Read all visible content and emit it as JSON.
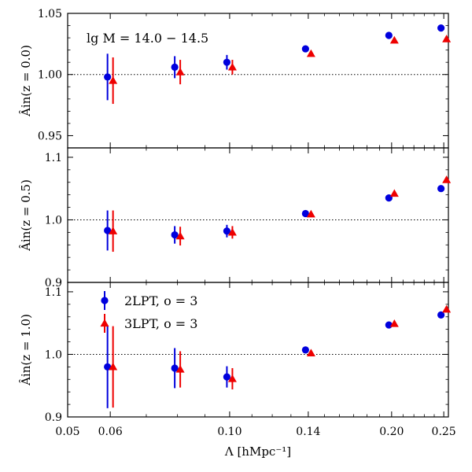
{
  "chart_data": {
    "type": "scatter",
    "x_scale": "log",
    "grid": false,
    "x_axis": {
      "label": "Λ [hMpc⁻¹]",
      "ticks": [
        0.05,
        0.06,
        0.1,
        0.14,
        0.2,
        0.25
      ],
      "tick_labels": [
        "0.05",
        "0.06",
        "0.10",
        "0.14",
        "0.20",
        "0.25"
      ]
    },
    "legend": {
      "placement": "upper-left of bottom panel",
      "entries": [
        {
          "label": "2LPT, o = 3",
          "color": "#0000dd",
          "marker": "circle"
        },
        {
          "label": "3LPT, o = 3",
          "color": "#ee0000",
          "marker": "triangle"
        }
      ]
    },
    "annotation": "lg M = 14.0 − 14.5",
    "panels": [
      {
        "ylabel": "Âin(z = 0.0)",
        "ylim": [
          0.94,
          1.05
        ],
        "yticks": [
          0.95,
          1.0,
          1.05
        ],
        "ytick_labels": [
          "0.95",
          "1.00",
          "1.05"
        ],
        "reference_line": 1.0,
        "series": [
          {
            "name": "2LPT, o = 3",
            "x": [
              0.06,
              0.08,
              0.1,
              0.14,
              0.2,
              0.25
            ],
            "y": [
              0.998,
              1.006,
              1.01,
              1.021,
              1.032,
              1.038
            ],
            "err": [
              0.019,
              0.009,
              0.006,
              0.002,
              0.002,
              0.002
            ]
          },
          {
            "name": "3LPT, o = 3",
            "x": [
              0.06,
              0.08,
              0.1,
              0.14,
              0.2,
              0.25
            ],
            "y": [
              0.995,
              1.002,
              1.006,
              1.017,
              1.028,
              1.029
            ],
            "err": [
              0.019,
              0.01,
              0.006,
              0.002,
              0.002,
              0.002
            ]
          }
        ]
      },
      {
        "ylabel": "Âin(z = 0.5)",
        "ylim": [
          0.9,
          1.115
        ],
        "yticks": [
          0.9,
          1.0,
          1.1
        ],
        "ytick_labels": [
          "0.9",
          "1.0",
          "1.1"
        ],
        "reference_line": 1.0,
        "series": [
          {
            "name": "2LPT, o = 3",
            "x": [
              0.06,
              0.08,
              0.1,
              0.14,
              0.2,
              0.25
            ],
            "y": [
              0.983,
              0.976,
              0.982,
              1.01,
              1.035,
              1.05
            ],
            "err": [
              0.032,
              0.014,
              0.01,
              0.003,
              0.003,
              0.002
            ]
          },
          {
            "name": "3LPT, o = 3",
            "x": [
              0.06,
              0.08,
              0.1,
              0.14,
              0.2,
              0.25
            ],
            "y": [
              0.982,
              0.974,
              0.98,
              1.009,
              1.042,
              1.064
            ],
            "err": [
              0.033,
              0.015,
              0.01,
              0.003,
              0.003,
              0.002
            ]
          }
        ]
      },
      {
        "ylabel": "Âin(z = 1.0)",
        "ylim": [
          0.9,
          1.115
        ],
        "yticks": [
          0.9,
          1.0,
          1.1
        ],
        "ytick_labels": [
          "0.9",
          "1.0",
          "1.1"
        ],
        "reference_line": 1.0,
        "series": [
          {
            "name": "2LPT, o = 3",
            "x": [
              0.06,
              0.08,
              0.1,
              0.14,
              0.2,
              0.25
            ],
            "y": [
              0.98,
              0.978,
              0.964,
              1.007,
              1.047,
              1.063
            ],
            "err": [
              0.066,
              0.032,
              0.017,
              0.003,
              0.003,
              0.003
            ]
          },
          {
            "name": "3LPT, o = 3",
            "x": [
              0.06,
              0.08,
              0.1,
              0.14,
              0.2,
              0.25
            ],
            "y": [
              0.98,
              0.976,
              0.961,
              1.002,
              1.049,
              1.072
            ],
            "err": [
              0.065,
              0.029,
              0.017,
              0.003,
              0.003,
              0.003
            ]
          }
        ]
      }
    ]
  }
}
